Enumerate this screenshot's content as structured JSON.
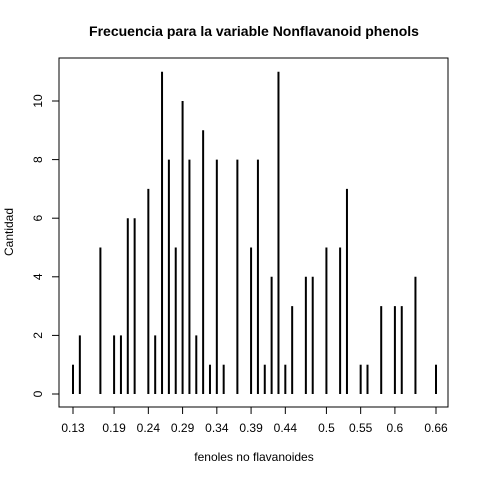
{
  "chart_data": {
    "type": "bar",
    "title": "Frecuencia para la variable Nonflavanoid phenols",
    "xlabel": "fenoles no flavanoides",
    "ylabel": "Cantidad",
    "xlim": [
      0.13,
      0.66
    ],
    "ylim": [
      0,
      11
    ],
    "x_ticks": [
      0.13,
      0.19,
      0.24,
      0.29,
      0.34,
      0.39,
      0.44,
      0.5,
      0.55,
      0.6,
      0.66
    ],
    "x_tick_labels": [
      "0.13",
      "0.19",
      "0.24",
      "0.29",
      "0.34",
      "0.39",
      "0.44",
      "0.5",
      "0.55",
      "0.6",
      "0.66"
    ],
    "y_ticks": [
      0,
      2,
      4,
      6,
      8,
      10
    ],
    "y_tick_labels": [
      "0",
      "2",
      "4",
      "6",
      "8",
      "10"
    ],
    "grid": false,
    "bar_color": "#000000",
    "x": [
      0.13,
      0.14,
      0.17,
      0.19,
      0.2,
      0.21,
      0.22,
      0.24,
      0.25,
      0.26,
      0.27,
      0.28,
      0.29,
      0.3,
      0.31,
      0.32,
      0.33,
      0.34,
      0.35,
      0.37,
      0.39,
      0.4,
      0.41,
      0.42,
      0.43,
      0.44,
      0.45,
      0.47,
      0.48,
      0.5,
      0.52,
      0.53,
      0.55,
      0.56,
      0.58,
      0.6,
      0.61,
      0.63,
      0.66
    ],
    "values": [
      1,
      2,
      5,
      2,
      2,
      6,
      6,
      7,
      2,
      11,
      8,
      5,
      10,
      8,
      2,
      9,
      1,
      8,
      1,
      8,
      5,
      8,
      1,
      4,
      11,
      1,
      3,
      4,
      4,
      5,
      5,
      7,
      1,
      1,
      3,
      3,
      3,
      4,
      1
    ]
  }
}
